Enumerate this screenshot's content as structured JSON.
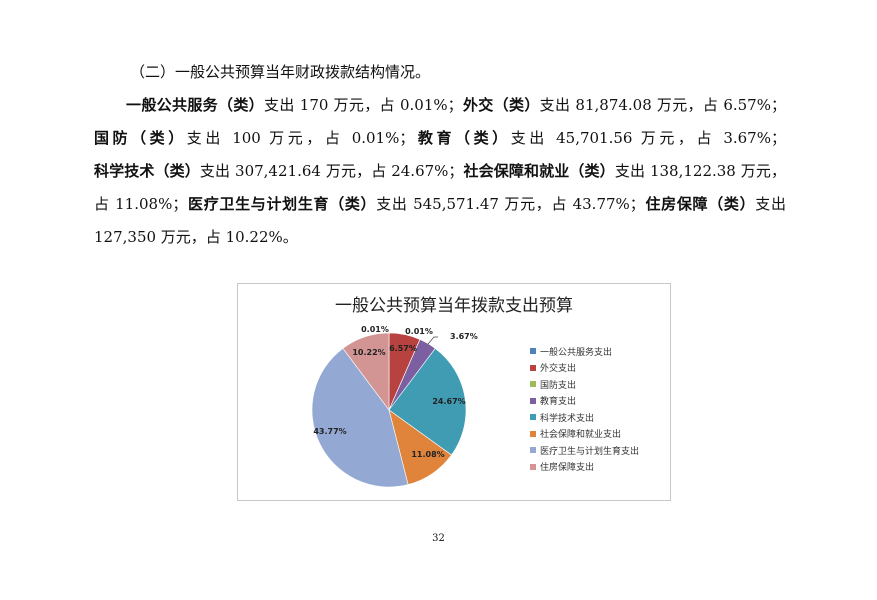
{
  "heading": "（二）一般公共预算当年财政拨款结构情况。",
  "paragraph": [
    {
      "text": "一般公共服务（类）",
      "bold": true
    },
    {
      "text": "支出 170 万元，占 0.01%；",
      "bold": false
    },
    {
      "text": "外交（类）",
      "bold": true
    },
    {
      "text": "支出 81,874.08 万元，占 6.57%；",
      "bold": false
    },
    {
      "text": "国防（类）",
      "bold": true
    },
    {
      "text": "支出 100 万元，占 0.01%；",
      "bold": false
    },
    {
      "text": "教育（类）",
      "bold": true
    },
    {
      "text": "支出 45,701.56 万元，占 3.67%；",
      "bold": false
    },
    {
      "text": "科学技术（类）",
      "bold": true
    },
    {
      "text": "支出 307,421.64 万元，占 24.67%；",
      "bold": false
    },
    {
      "text": "社会保障和就业（类）",
      "bold": true
    },
    {
      "text": "支出 138,122.38 万元，占 11.08%；",
      "bold": false
    },
    {
      "text": "医疗卫生与计划生育（类）",
      "bold": true
    },
    {
      "text": "支出 545,571.47 万元，占 43.77%；",
      "bold": false
    },
    {
      "text": "住房保障（类）",
      "bold": true
    },
    {
      "text": "支出 127,350 万元，占 10.22%。",
      "bold": false
    }
  ],
  "chart_data": {
    "type": "pie",
    "title": "一般公共预算当年拨款支出预算",
    "legend_placement": "right",
    "categories": [
      "一般公共服务支出",
      "外交支出",
      "国防支出",
      "教育支出",
      "科学技术支出",
      "社会保障和就业支出",
      "医疗卫生与计划生育支出",
      "住房保障支出"
    ],
    "values": [
      0.01,
      6.57,
      0.01,
      3.67,
      24.67,
      11.08,
      43.77,
      10.22
    ],
    "labels": [
      "0.01%",
      "6.57%",
      "0.01%",
      "3.67%",
      "24.67%",
      "11.08%",
      "43.77%",
      "10.22%"
    ],
    "colors": [
      "#4F81BD",
      "#B8423F",
      "#9BBB59",
      "#7B5FA0",
      "#3F9CB2",
      "#E0843C",
      "#93A9D3",
      "#D39593"
    ]
  },
  "page_number": "32"
}
